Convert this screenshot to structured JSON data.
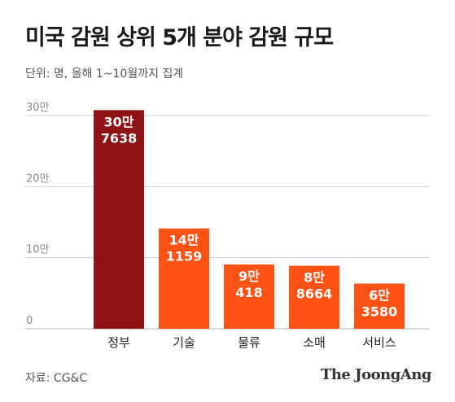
{
  "title": "미국 감원 상위 5개 분야 감원 규모",
  "unit_note": "단위: 명, 올해 1~10월까지 집계",
  "source": "자료: CG&C",
  "publisher": "The JoongAng",
  "colors": {
    "highlight": "#8e1216",
    "bar": "#ff5316",
    "grid": "#cfcfcf",
    "axis": "#b5b5b5"
  },
  "chart_data": {
    "type": "bar",
    "categories": [
      "정부",
      "기술",
      "물류",
      "소매",
      "서비스"
    ],
    "values": [
      307638,
      141159,
      90418,
      88664,
      63580
    ],
    "value_labels": [
      [
        "30만",
        "7638"
      ],
      [
        "14만",
        "1159"
      ],
      [
        "9만",
        "418"
      ],
      [
        "8만",
        "8664"
      ],
      [
        "6만",
        "3580"
      ]
    ],
    "y_ticks": [
      0,
      100000,
      200000,
      300000
    ],
    "y_tick_labels": [
      "0",
      "10만",
      "20만",
      "30만"
    ],
    "ylim": [
      0,
      300000
    ],
    "grid": true,
    "highlight_index": 0
  }
}
